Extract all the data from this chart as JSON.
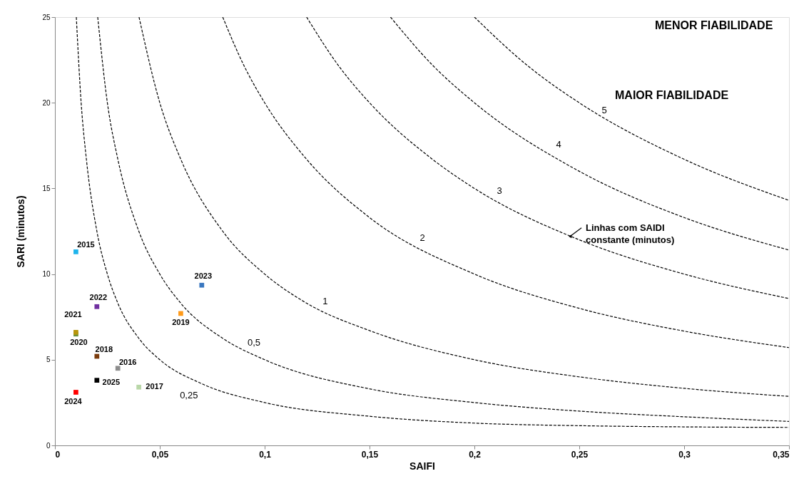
{
  "chart_data": {
    "type": "scatter",
    "xlabel": "SAIFI",
    "ylabel": "SARI (minutos)",
    "xlim": [
      0,
      0.35
    ],
    "ylim": [
      0,
      25
    ],
    "xticks": [
      0,
      {
        "value": 0.05,
        "label": "0,05"
      },
      {
        "value": 0.1,
        "label": "0,1"
      },
      {
        "value": 0.15,
        "label": "0,15"
      },
      {
        "value": 0.2,
        "label": "0,2"
      },
      {
        "value": 0.25,
        "label": "0,25"
      },
      {
        "value": 0.3,
        "label": "0,3"
      },
      {
        "value": 0.35,
        "label": "0,35"
      }
    ],
    "yticks": [
      0,
      5,
      10,
      15,
      20,
      25
    ],
    "grid": false,
    "marker": "square",
    "series": [
      {
        "type": "line",
        "name": "0,25",
        "color": "#000000",
        "line_style": "dashed",
        "marker": "none",
        "x": [
          0.0102,
          0.0125,
          0.015,
          0.02,
          0.025,
          0.03,
          0.04,
          0.05,
          0.07,
          0.1,
          0.15,
          0.2,
          0.25,
          0.3,
          0.35
        ],
        "values": [
          25,
          20,
          16.7,
          12.5,
          10,
          8.3,
          6.25,
          5,
          3.6,
          2.5,
          1.7,
          1.3,
          1.15,
          1.08,
          1.05
        ]
      },
      {
        "type": "line",
        "name": "0,5",
        "color": "#000000",
        "line_style": "dashed",
        "marker": "none",
        "x": [
          0.0204,
          0.025,
          0.03,
          0.04,
          0.05,
          0.06,
          0.08,
          0.1,
          0.15,
          0.2,
          0.25,
          0.3,
          0.35
        ],
        "values": [
          25,
          20,
          16.7,
          12.5,
          10,
          8.3,
          6.25,
          5,
          3.3,
          2.5,
          2,
          1.67,
          1.4
        ]
      },
      {
        "type": "line",
        "name": "1",
        "color": "#000000",
        "line_style": "dashed",
        "marker": "none",
        "x": [
          0.0401,
          0.05,
          0.06,
          0.08,
          0.1,
          0.12,
          0.15,
          0.2,
          0.25,
          0.3,
          0.35
        ],
        "values": [
          25,
          20,
          16.7,
          12.5,
          10,
          8.3,
          6.7,
          5,
          4,
          3.33,
          2.86
        ]
      },
      {
        "type": "line",
        "name": "2",
        "color": "#000000",
        "line_style": "dashed",
        "marker": "none",
        "x": [
          0.08,
          0.09,
          0.1,
          0.12,
          0.15,
          0.2,
          0.25,
          0.3,
          0.35
        ],
        "values": [
          25,
          22.2,
          20,
          16.7,
          13.3,
          10,
          8,
          6.67,
          5.71
        ]
      },
      {
        "type": "line",
        "name": "3",
        "color": "#000000",
        "line_style": "dashed",
        "marker": "none",
        "x": [
          0.12,
          0.135,
          0.15,
          0.18,
          0.2,
          0.25,
          0.3,
          0.35
        ],
        "values": [
          25,
          22.2,
          20,
          16.7,
          15,
          12,
          10,
          8.57
        ]
      },
      {
        "type": "line",
        "name": "4",
        "color": "#000000",
        "line_style": "dashed",
        "marker": "none",
        "x": [
          0.16,
          0.18,
          0.2,
          0.25,
          0.3,
          0.35
        ],
        "values": [
          25,
          22.2,
          20,
          16,
          13.3,
          11.4
        ]
      },
      {
        "type": "line",
        "name": "5",
        "color": "#000000",
        "line_style": "dashed",
        "marker": "none",
        "x": [
          0.2,
          0.225,
          0.25,
          0.3,
          0.35
        ],
        "values": [
          25,
          22.2,
          20,
          16.7,
          14.3
        ]
      },
      {
        "name": "2015",
        "color": "#1fb4ec",
        "x": [
          0.01
        ],
        "values": [
          11.3
        ]
      },
      {
        "name": "2016",
        "color": "#8c8c8c",
        "x": [
          0.03
        ],
        "values": [
          4.5
        ]
      },
      {
        "name": "2017",
        "color": "#b9d7a8",
        "x": [
          0.04
        ],
        "values": [
          3.4
        ]
      },
      {
        "name": "2018",
        "color": "#7a3b0c",
        "x": [
          0.02
        ],
        "values": [
          5.2
        ]
      },
      {
        "name": "2019",
        "color": "#ff9a1a",
        "x": [
          0.06
        ],
        "values": [
          7.7
        ]
      },
      {
        "name": "2020",
        "color": "#6a8f3a",
        "x": [
          0.01
        ],
        "values": [
          6.5
        ]
      },
      {
        "name": "2021",
        "color": "#b8960b",
        "x": [
          0.01
        ],
        "values": [
          6.6
        ]
      },
      {
        "name": "2022",
        "color": "#7030a0",
        "x": [
          0.02
        ],
        "values": [
          8.1
        ]
      },
      {
        "name": "2023",
        "color": "#3a78c0",
        "x": [
          0.07
        ],
        "values": [
          9.35
        ]
      },
      {
        "name": "2024",
        "color": "#ff0000",
        "x": [
          0.01
        ],
        "values": [
          3.1
        ]
      },
      {
        "name": "2025",
        "color": "#000000",
        "x": [
          0.02
        ],
        "values": [
          3.8
        ]
      }
    ],
    "annotations": [
      {
        "text": "Linhas com SAIDI constante (minutos)",
        "x": 0.2456,
        "y": 12.2
      },
      "MENOR FIABILIDADE",
      "MAIOR FIABILIDADE"
    ]
  }
}
